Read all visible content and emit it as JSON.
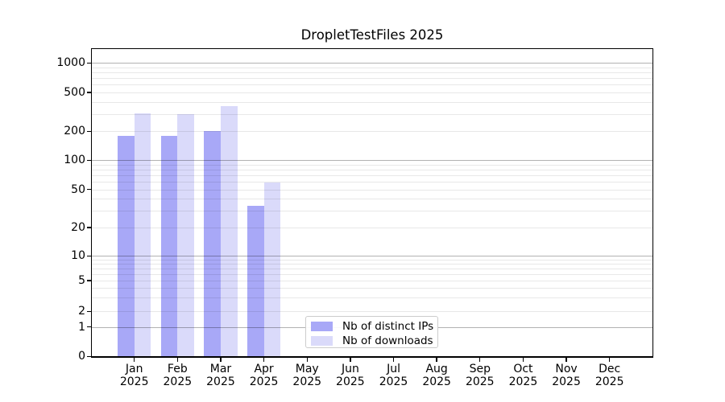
{
  "chart_data": {
    "type": "bar",
    "title": "DropletTestFiles 2025",
    "categories": [
      "Jan 2025",
      "Feb 2025",
      "Mar 2025",
      "Apr 2025",
      "May 2025",
      "Jun 2025",
      "Jul 2025",
      "Aug 2025",
      "Sep 2025",
      "Oct 2025",
      "Nov 2025",
      "Dec 2025"
    ],
    "series": [
      {
        "name": "Nb of distinct IPs",
        "color": "#a8a8f7",
        "values": [
          180,
          180,
          200,
          34,
          null,
          null,
          null,
          null,
          null,
          null,
          null,
          null
        ]
      },
      {
        "name": "Nb of downloads",
        "color": "#dadafa",
        "values": [
          305,
          300,
          365,
          59,
          null,
          null,
          null,
          null,
          null,
          null,
          null,
          null
        ]
      }
    ],
    "yscale": "symlog",
    "yticks": [
      0,
      1,
      2,
      5,
      10,
      20,
      50,
      100,
      200,
      500,
      1000
    ],
    "ylim": [
      0,
      1400
    ],
    "grid": true,
    "legend_position": "bottom-center"
  }
}
